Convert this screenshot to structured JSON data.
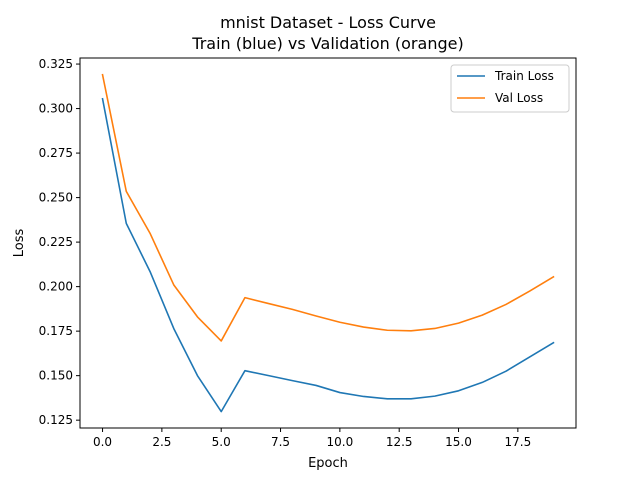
{
  "chart_data": {
    "type": "line",
    "title": "mnist Dataset - Loss Curve",
    "subtitle": "Train (blue) vs Validation (orange)",
    "xlabel": "Epoch",
    "ylabel": "Loss",
    "xlim": [
      -0.95,
      19.95
    ],
    "ylim": [
      0.1206,
      0.3284
    ],
    "xticks": [
      0.0,
      2.5,
      5.0,
      7.5,
      10.0,
      12.5,
      15.0,
      17.5
    ],
    "xtick_labels": [
      "0.0",
      "2.5",
      "5.0",
      "7.5",
      "10.0",
      "12.5",
      "15.0",
      "17.5"
    ],
    "yticks": [
      0.125,
      0.15,
      0.175,
      0.2,
      0.225,
      0.25,
      0.275,
      0.3,
      0.325
    ],
    "ytick_labels": [
      "0.125",
      "0.150",
      "0.175",
      "0.200",
      "0.225",
      "0.250",
      "0.275",
      "0.300",
      "0.325"
    ],
    "grid": false,
    "legend_position": "top-right",
    "x": [
      0,
      1,
      2,
      3,
      4,
      5,
      6,
      7,
      8,
      9,
      10,
      11,
      12,
      13,
      14,
      15,
      16,
      17,
      18,
      19
    ],
    "series": [
      {
        "name": "Train Loss",
        "color": "#1f77b4",
        "values": [
          0.3055,
          0.2355,
          0.2085,
          0.1765,
          0.15,
          0.1298,
          0.1528,
          0.15,
          0.1472,
          0.1445,
          0.1405,
          0.1383,
          0.137,
          0.137,
          0.1385,
          0.1415,
          0.1462,
          0.1525,
          0.1605,
          0.1685
        ]
      },
      {
        "name": "Val Loss",
        "color": "#ff7f0e",
        "values": [
          0.319,
          0.2535,
          0.23,
          0.201,
          0.183,
          0.1695,
          0.1938,
          0.1905,
          0.1872,
          0.1835,
          0.18,
          0.1773,
          0.1755,
          0.1752,
          0.1765,
          0.1795,
          0.184,
          0.19,
          0.1975,
          0.2055
        ]
      }
    ]
  }
}
